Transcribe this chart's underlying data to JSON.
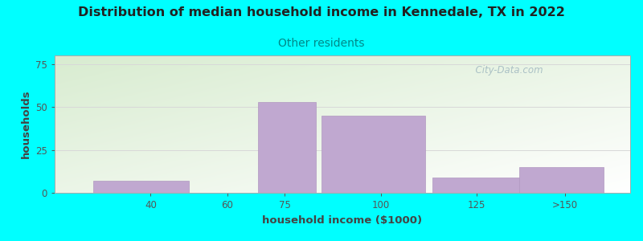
{
  "title": "Distribution of median household income in Kennedale, TX in 2022",
  "subtitle": "Other residents",
  "xlabel": "household income ($1000)",
  "ylabel": "households",
  "background_color": "#00FFFF",
  "bar_color": "#c0a8d0",
  "bar_edge_color": "#b098c0",
  "bar_positions": [
    37.5,
    75.5,
    98.0,
    125.5,
    147.0
  ],
  "bar_heights": [
    7,
    53,
    45,
    9,
    15
  ],
  "bar_widths": [
    25,
    15,
    27,
    24,
    22
  ],
  "xtick_positions": [
    40,
    60,
    75,
    100,
    125,
    148
  ],
  "xtick_labels": [
    "40",
    "60",
    "75",
    "100",
    "125",
    ">150"
  ],
  "ytick_positions": [
    0,
    25,
    50,
    75
  ],
  "ytick_labels": [
    "0",
    "25",
    "50",
    "75"
  ],
  "ylim": [
    0,
    80
  ],
  "xlim": [
    15,
    165
  ],
  "title_fontsize": 11.5,
  "subtitle_fontsize": 10,
  "label_fontsize": 9.5,
  "tick_fontsize": 8.5,
  "watermark_text": "  City-Data.com",
  "watermark_color": "#a0b8c0",
  "grid_color": "#d8d8d8",
  "gradient_top_left": "#d8ecd0",
  "gradient_bottom_right": "#ffffff"
}
